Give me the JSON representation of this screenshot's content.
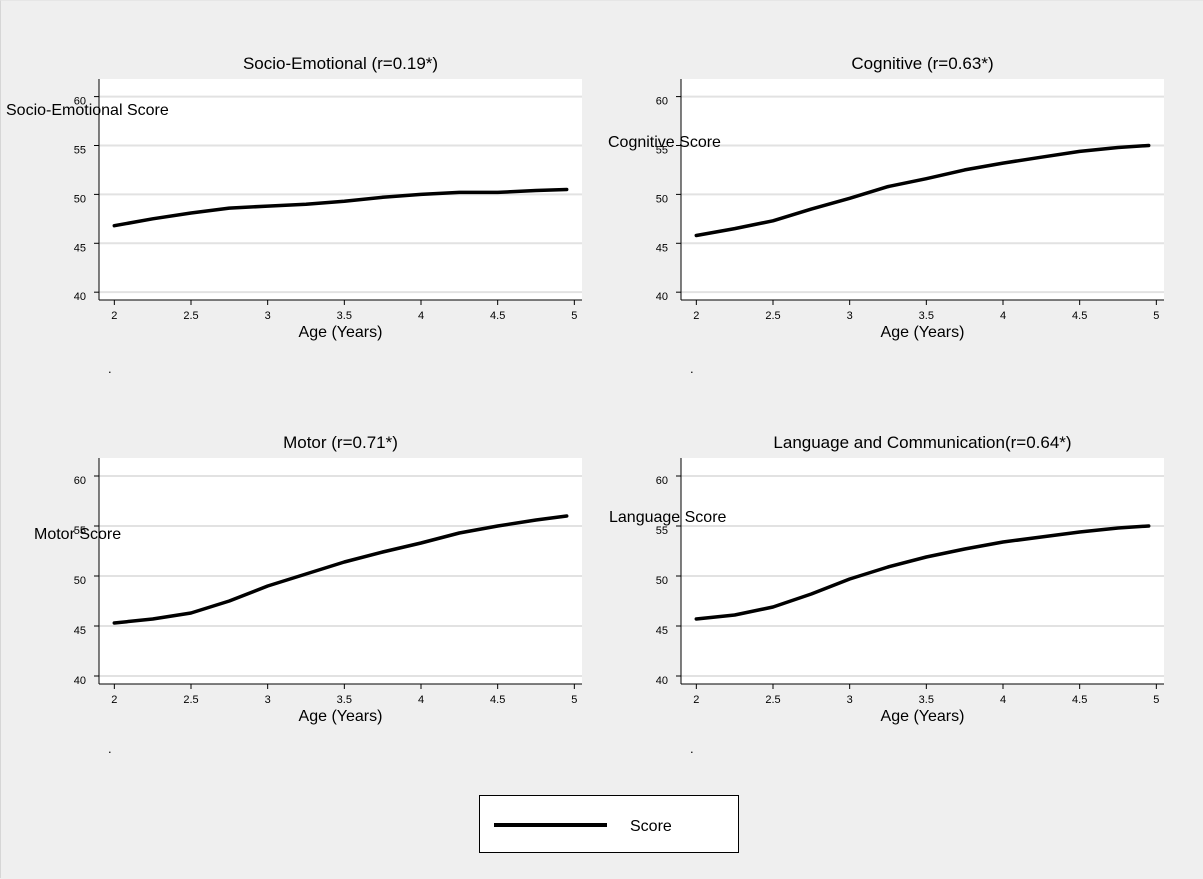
{
  "chart_data": [
    {
      "type": "line",
      "title": "Socio-Emotional  (r=0.19*)",
      "xlabel": "Age (Years)",
      "ylabel": "Socio-Emotional  Score",
      "xlim": [
        1.9,
        5.05
      ],
      "ylim": [
        39.2,
        61.8
      ],
      "xticks": [
        2,
        2.5,
        3,
        3.5,
        4,
        4.5,
        5
      ],
      "yticks": [
        40,
        45,
        50,
        55,
        60
      ],
      "grid": true,
      "series": [
        {
          "name": "Score",
          "x": [
            2.0,
            2.25,
            2.5,
            2.75,
            3.0,
            3.25,
            3.5,
            3.75,
            4.0,
            4.25,
            4.5,
            4.75,
            4.95
          ],
          "y": [
            46.8,
            47.5,
            48.1,
            48.6,
            48.8,
            49.0,
            49.3,
            49.7,
            50.0,
            50.2,
            50.2,
            50.4,
            50.5
          ]
        }
      ],
      "footnote": "."
    },
    {
      "type": "line",
      "title": "Cognitive  (r=0.63*)",
      "xlabel": "Age (Years)",
      "ylabel": "Cognitive Score",
      "xlim": [
        1.9,
        5.05
      ],
      "ylim": [
        39.2,
        61.8
      ],
      "xticks": [
        2,
        2.5,
        3,
        3.5,
        4,
        4.5,
        5
      ],
      "yticks": [
        40,
        45,
        50,
        55,
        60
      ],
      "grid": true,
      "series": [
        {
          "name": "Score",
          "x": [
            2.0,
            2.25,
            2.5,
            2.75,
            3.0,
            3.25,
            3.5,
            3.75,
            4.0,
            4.25,
            4.5,
            4.75,
            4.95
          ],
          "y": [
            45.8,
            46.5,
            47.3,
            48.5,
            49.6,
            50.8,
            51.6,
            52.5,
            53.2,
            53.8,
            54.4,
            54.8,
            55.0
          ]
        }
      ],
      "footnote": "."
    },
    {
      "type": "line",
      "title": "Motor  (r=0.71*)",
      "xlabel": "Age (Years)",
      "ylabel": "Motor Score",
      "xlim": [
        1.9,
        5.05
      ],
      "ylim": [
        39.2,
        61.8
      ],
      "xticks": [
        2,
        2.5,
        3,
        3.5,
        4,
        4.5,
        5
      ],
      "yticks": [
        40,
        45,
        50,
        55,
        60
      ],
      "grid": true,
      "series": [
        {
          "name": "Score",
          "x": [
            2.0,
            2.25,
            2.5,
            2.75,
            3.0,
            3.25,
            3.5,
            3.75,
            4.0,
            4.25,
            4.5,
            4.75,
            4.95
          ],
          "y": [
            45.3,
            45.7,
            46.3,
            47.5,
            49.0,
            50.2,
            51.4,
            52.4,
            53.3,
            54.3,
            55.0,
            55.6,
            56.0
          ]
        }
      ],
      "footnote": "."
    },
    {
      "type": "line",
      "title": "Language and Communication(r=0.64*)",
      "xlabel": "Age (Years)",
      "ylabel": "Language Score",
      "xlim": [
        1.9,
        5.05
      ],
      "ylim": [
        39.2,
        61.8
      ],
      "xticks": [
        2,
        2.5,
        3,
        3.5,
        4,
        4.5,
        5
      ],
      "yticks": [
        40,
        45,
        50,
        55,
        60
      ],
      "grid": true,
      "series": [
        {
          "name": "Score",
          "x": [
            2.0,
            2.25,
            2.5,
            2.75,
            3.0,
            3.25,
            3.5,
            3.75,
            4.0,
            4.25,
            4.5,
            4.75,
            4.95
          ],
          "y": [
            45.7,
            46.1,
            46.9,
            48.2,
            49.7,
            50.9,
            51.9,
            52.7,
            53.4,
            53.9,
            54.4,
            54.8,
            55.0
          ]
        }
      ],
      "footnote": "."
    }
  ],
  "legend": {
    "label": "Score",
    "placement": "bottom-center"
  }
}
